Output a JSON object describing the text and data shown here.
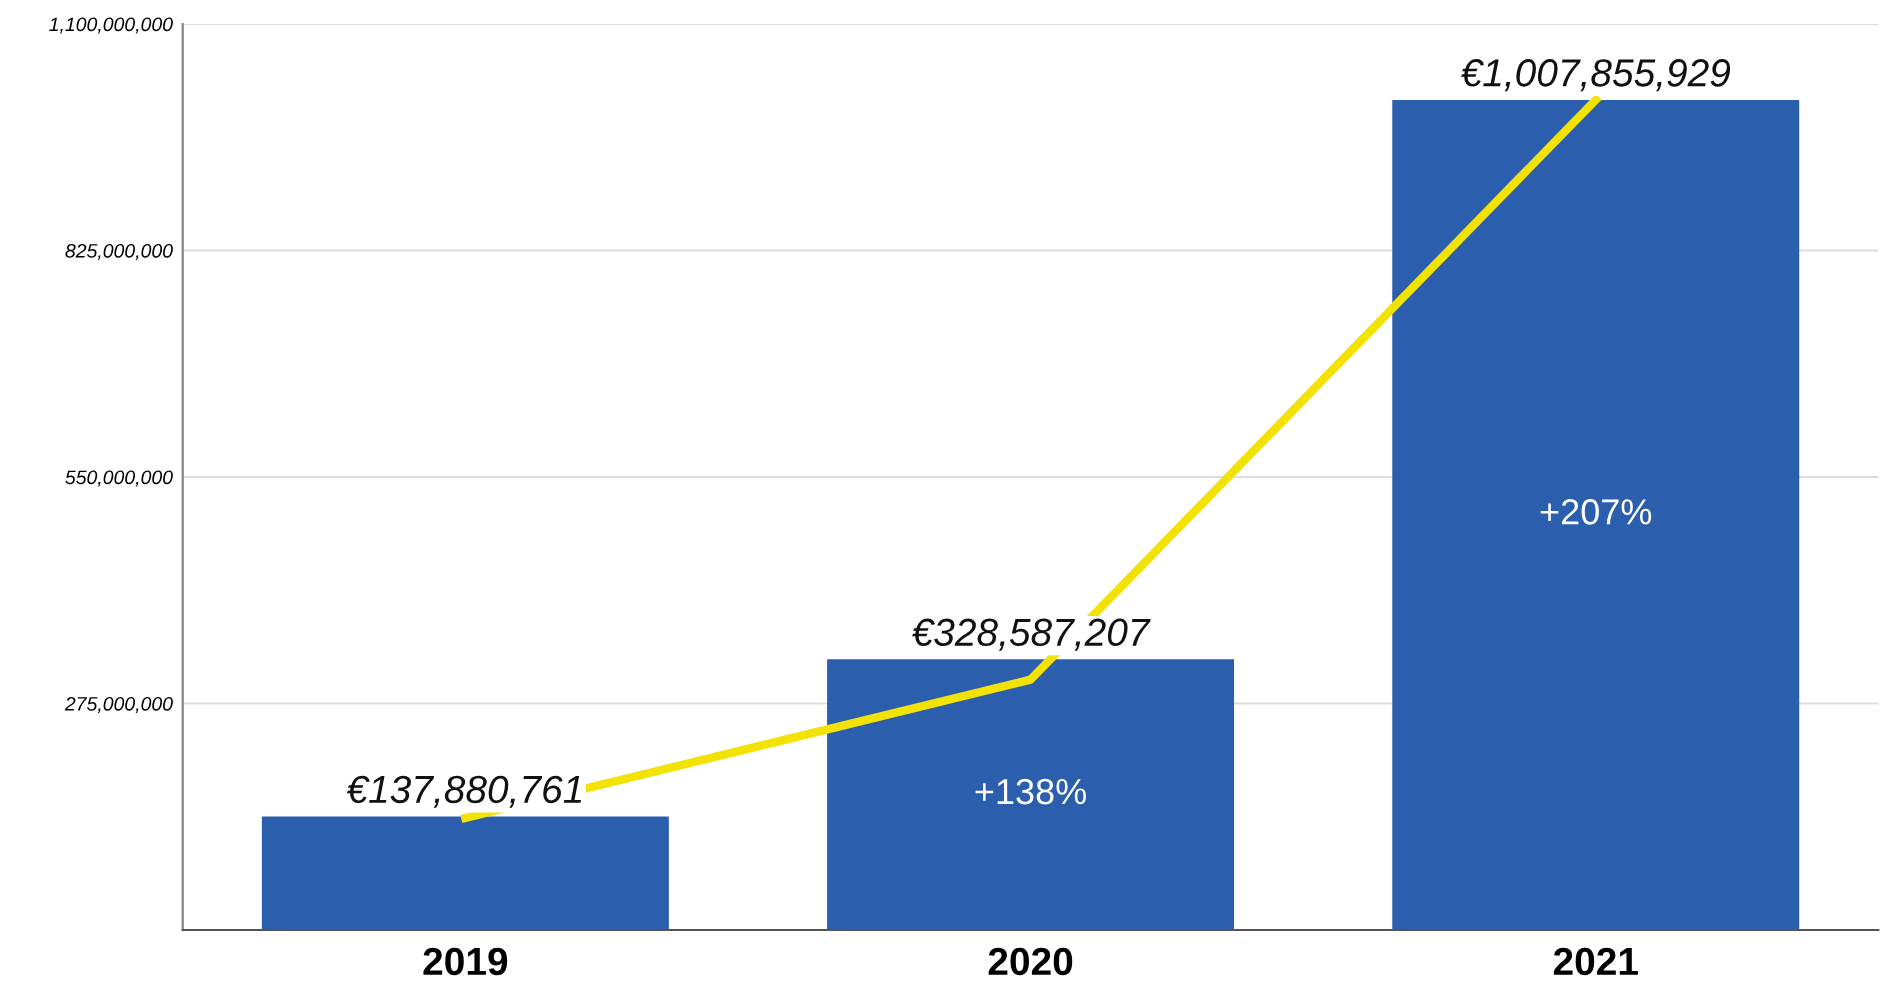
{
  "chart_data": {
    "type": "bar",
    "categories": [
      "2019",
      "2020",
      "2021"
    ],
    "series": [
      {
        "color": "#2b5ead",
        "values": [
          137880761,
          328587207,
          1007855929
        ],
        "value_labels": [
          "€137,880,761",
          "€328,587,207",
          "€1,007,855,929"
        ]
      },
      {
        "type": "line",
        "color": "#f2e205",
        "values": [
          136000000,
          304000000,
          1008000000
        ]
      }
    ],
    "ylim": [
      0,
      1100000000
    ],
    "yticks": [
      {
        "value": 275000000,
        "label": "275,000,000"
      },
      {
        "value": 550000000,
        "label": "550,000,000"
      },
      {
        "value": 825000000,
        "label": "825,000,000"
      },
      {
        "value": 1100000000,
        "label": "1,100,000,000"
      }
    ],
    "grid": "y",
    "legend": false,
    "annotations": [
      "+138%",
      "+207%"
    ]
  }
}
